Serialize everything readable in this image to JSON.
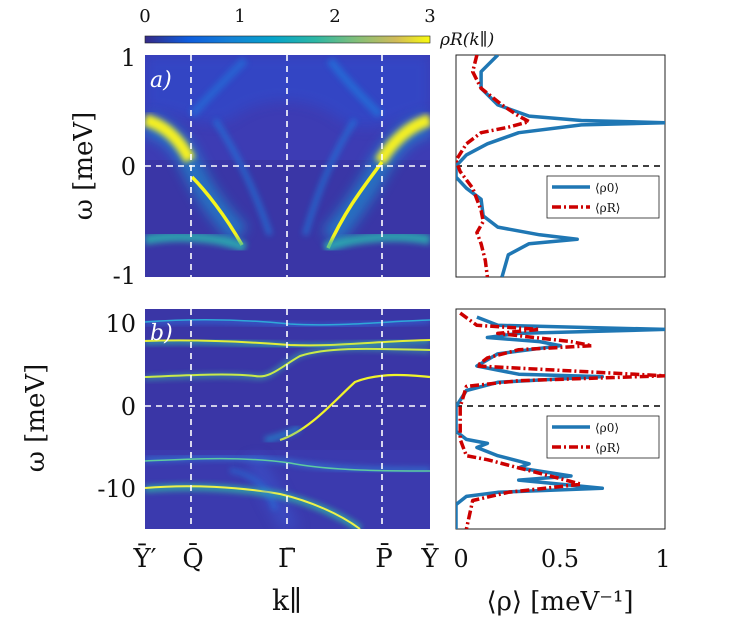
{
  "chart_data": [
    {
      "type": "heatmap",
      "panel": "a)",
      "ylabel": "ω [meV]",
      "xlabel": "",
      "ylim": [
        -1,
        1
      ],
      "yticks": [
        "1",
        "0",
        "-1"
      ],
      "colorbar": {
        "label": "ρR(k∥)",
        "range": [
          0,
          3
        ],
        "ticks": [
          "0",
          "1",
          "2",
          "3"
        ]
      },
      "x_ticks": [
        "Ȳ′",
        "Q̄",
        "Γ̄",
        "P̄",
        "Ȳ"
      ],
      "dashed_vertical_at": [
        "Q̄",
        "Γ̄",
        "P̄"
      ],
      "dashed_horizontal_at": 0
    },
    {
      "type": "line",
      "panel": "a) right",
      "xlim": [
        0,
        1
      ],
      "ylim": [
        -1,
        1
      ],
      "series": [
        {
          "name": "⟨ρ0⟩",
          "color": "#1f77b4",
          "style": "solid",
          "points": [
            [
              0.2,
              1.0
            ],
            [
              0.12,
              0.85
            ],
            [
              0.12,
              0.7
            ],
            [
              0.2,
              0.55
            ],
            [
              0.35,
              0.45
            ],
            [
              0.6,
              0.41
            ],
            [
              1.0,
              0.39
            ],
            [
              0.6,
              0.37
            ],
            [
              0.3,
              0.3
            ],
            [
              0.15,
              0.2
            ],
            [
              0.05,
              0.1
            ],
            [
              0.0,
              0.0
            ],
            [
              0.0,
              -0.1
            ],
            [
              0.05,
              -0.2
            ],
            [
              0.12,
              -0.3
            ],
            [
              0.13,
              -0.45
            ],
            [
              0.2,
              -0.55
            ],
            [
              0.4,
              -0.62
            ],
            [
              0.58,
              -0.66
            ],
            [
              0.35,
              -0.7
            ],
            [
              0.25,
              -0.8
            ],
            [
              0.22,
              -1.0
            ]
          ]
        },
        {
          "name": "⟨ρR⟩",
          "color": "#cc0000",
          "style": "dashdot",
          "points": [
            [
              0.1,
              1.0
            ],
            [
              0.08,
              0.85
            ],
            [
              0.12,
              0.7
            ],
            [
              0.22,
              0.55
            ],
            [
              0.3,
              0.45
            ],
            [
              0.35,
              0.4
            ],
            [
              0.25,
              0.35
            ],
            [
              0.12,
              0.3
            ],
            [
              0.05,
              0.2
            ],
            [
              0.0,
              0.05
            ],
            [
              0.02,
              -0.05
            ],
            [
              0.08,
              -0.2
            ],
            [
              0.12,
              -0.4
            ],
            [
              0.13,
              -0.5
            ],
            [
              0.1,
              -0.6
            ],
            [
              0.12,
              -0.7
            ],
            [
              0.14,
              -0.85
            ],
            [
              0.15,
              -1.0
            ]
          ]
        }
      ],
      "legend": {
        "entries": [
          "⟨ρ0⟩",
          "⟨ρR⟩"
        ],
        "loc": "center-right"
      },
      "dashed_horizontal_at": 0
    },
    {
      "type": "heatmap",
      "panel": "b)",
      "ylabel": "ω [meV]",
      "xlabel": "k∥",
      "ylim": [
        -15,
        12
      ],
      "yticks": [
        "10",
        "0",
        "-10"
      ],
      "x_ticks": [
        "Ȳ′",
        "Q̄",
        "Γ̄",
        "P̄",
        "Ȳ"
      ],
      "dashed_vertical_at": [
        "Q̄",
        "Γ̄",
        "P̄"
      ],
      "dashed_horizontal_at": 0
    },
    {
      "type": "line",
      "panel": "b) right",
      "xlabel": "⟨ρ⟩ [meV⁻¹]",
      "xlim": [
        0,
        1
      ],
      "ylim": [
        -15,
        12
      ],
      "xticks": [
        "0",
        "0.5",
        "1"
      ],
      "series": [
        {
          "name": "⟨ρ0⟩",
          "color": "#1f77b4",
          "style": "solid",
          "points": [
            [
              0.1,
              11
            ],
            [
              0.2,
              10
            ],
            [
              1.0,
              9.5
            ],
            [
              0.3,
              9
            ],
            [
              0.15,
              8.5
            ],
            [
              0.4,
              8
            ],
            [
              0.5,
              7.5
            ],
            [
              0.2,
              6.5
            ],
            [
              0.1,
              5
            ],
            [
              0.3,
              4
            ],
            [
              0.7,
              3.7
            ],
            [
              0.2,
              3
            ],
            [
              0.05,
              2
            ],
            [
              0.0,
              0
            ],
            [
              0.0,
              -3
            ],
            [
              0.05,
              -4
            ],
            [
              0.15,
              -4.5
            ],
            [
              0.1,
              -5
            ],
            [
              0.2,
              -6
            ],
            [
              0.35,
              -7
            ],
            [
              0.3,
              -7.5
            ],
            [
              0.55,
              -8.5
            ],
            [
              0.3,
              -9
            ],
            [
              0.7,
              -10
            ],
            [
              0.2,
              -10.5
            ],
            [
              0.05,
              -11
            ],
            [
              0.0,
              -12
            ],
            [
              0.0,
              -15
            ]
          ]
        },
        {
          "name": "⟨ρR⟩",
          "color": "#cc0000",
          "style": "dashdot",
          "points": [
            [
              0.02,
              11.5
            ],
            [
              0.1,
              10
            ],
            [
              0.4,
              9.5
            ],
            [
              0.2,
              9
            ],
            [
              0.55,
              8
            ],
            [
              0.65,
              7.5
            ],
            [
              0.3,
              7
            ],
            [
              0.15,
              6
            ],
            [
              0.1,
              5
            ],
            [
              1.0,
              3.8
            ],
            [
              0.3,
              3.2
            ],
            [
              0.05,
              2.5
            ],
            [
              0.02,
              0
            ],
            [
              0.02,
              -4
            ],
            [
              0.05,
              -6
            ],
            [
              0.15,
              -6.5
            ],
            [
              0.3,
              -7.5
            ],
            [
              0.45,
              -8.5
            ],
            [
              0.6,
              -9.5
            ],
            [
              0.25,
              -10.5
            ],
            [
              0.08,
              -11.5
            ],
            [
              0.05,
              -15
            ]
          ]
        }
      ],
      "legend": {
        "entries": [
          "⟨ρ0⟩",
          "⟨ρR⟩"
        ],
        "loc": "center-right"
      },
      "dashed_horizontal_at": 0
    }
  ]
}
